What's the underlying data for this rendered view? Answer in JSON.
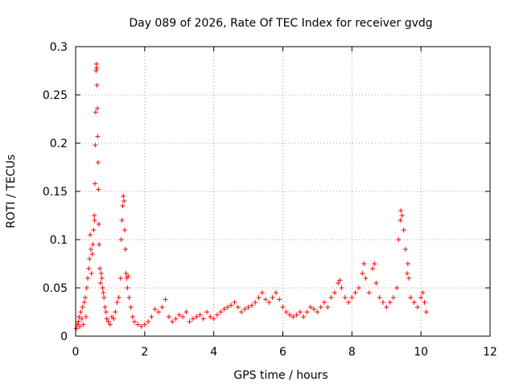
{
  "chart_data": {
    "type": "scatter",
    "title": "Day 089 of 2026, Rate Of TEC Index for receiver gvdg",
    "xlabel": "GPS time / hours",
    "ylabel": "ROTI / TECUs",
    "xlim": [
      0,
      12
    ],
    "ylim": [
      0,
      0.3
    ],
    "x_ticks": [
      0,
      2,
      4,
      6,
      8,
      10,
      12
    ],
    "x_tick_labels": [
      "0",
      "2",
      "4",
      "6",
      "8",
      "10",
      "12"
    ],
    "y_ticks": [
      0,
      0.05,
      0.1,
      0.15,
      0.2,
      0.25,
      0.3
    ],
    "y_tick_labels": [
      "0",
      "0.05",
      "0.1",
      "0.15",
      "0.2",
      "0.25",
      "0.3"
    ],
    "grid": true,
    "marker": "+",
    "color": "#ff0000",
    "series": [
      {
        "name": "ROTI",
        "points": [
          [
            0.02,
            0.008
          ],
          [
            0.05,
            0.012
          ],
          [
            0.08,
            0.015
          ],
          [
            0.1,
            0.02
          ],
          [
            0.12,
            0.01
          ],
          [
            0.15,
            0.025
          ],
          [
            0.18,
            0.018
          ],
          [
            0.2,
            0.03
          ],
          [
            0.22,
            0.012
          ],
          [
            0.25,
            0.035
          ],
          [
            0.28,
            0.04
          ],
          [
            0.3,
            0.02
          ],
          [
            0.32,
            0.05
          ],
          [
            0.35,
            0.06
          ],
          [
            0.38,
            0.07
          ],
          [
            0.4,
            0.08
          ],
          [
            0.42,
            0.105
          ],
          [
            0.44,
            0.09
          ],
          [
            0.46,
            0.065
          ],
          [
            0.48,
            0.085
          ],
          [
            0.5,
            0.095
          ],
          [
            0.52,
            0.11
          ],
          [
            0.54,
            0.125
          ],
          [
            0.55,
            0.12
          ],
          [
            0.56,
            0.158
          ],
          [
            0.57,
            0.198
          ],
          [
            0.58,
            0.232
          ],
          [
            0.59,
            0.275
          ],
          [
            0.6,
            0.282
          ],
          [
            0.61,
            0.278
          ],
          [
            0.62,
            0.26
          ],
          [
            0.63,
            0.236
          ],
          [
            0.64,
            0.207
          ],
          [
            0.65,
            0.18
          ],
          [
            0.66,
            0.152
          ],
          [
            0.67,
            0.116
          ],
          [
            0.68,
            0.095
          ],
          [
            0.7,
            0.07
          ],
          [
            0.72,
            0.055
          ],
          [
            0.74,
            0.065
          ],
          [
            0.76,
            0.06
          ],
          [
            0.78,
            0.05
          ],
          [
            0.8,
            0.045
          ],
          [
            0.82,
            0.04
          ],
          [
            0.85,
            0.03
          ],
          [
            0.88,
            0.025
          ],
          [
            0.9,
            0.018
          ],
          [
            0.95,
            0.015
          ],
          [
            1.0,
            0.012
          ],
          [
            1.05,
            0.02
          ],
          [
            1.1,
            0.018
          ],
          [
            1.15,
            0.025
          ],
          [
            1.2,
            0.035
          ],
          [
            1.25,
            0.04
          ],
          [
            1.3,
            0.06
          ],
          [
            1.32,
            0.1
          ],
          [
            1.34,
            0.12
          ],
          [
            1.36,
            0.135
          ],
          [
            1.38,
            0.145
          ],
          [
            1.4,
            0.14
          ],
          [
            1.42,
            0.11
          ],
          [
            1.44,
            0.09
          ],
          [
            1.46,
            0.065
          ],
          [
            1.48,
            0.06
          ],
          [
            1.5,
            0.05
          ],
          [
            1.52,
            0.062
          ],
          [
            1.55,
            0.04
          ],
          [
            1.6,
            0.03
          ],
          [
            1.65,
            0.02
          ],
          [
            1.7,
            0.015
          ],
          [
            1.8,
            0.012
          ],
          [
            1.9,
            0.01
          ],
          [
            2.0,
            0.012
          ],
          [
            2.1,
            0.015
          ],
          [
            2.2,
            0.02
          ],
          [
            2.3,
            0.028
          ],
          [
            2.4,
            0.025
          ],
          [
            2.5,
            0.03
          ],
          [
            2.6,
            0.038
          ],
          [
            2.7,
            0.02
          ],
          [
            2.8,
            0.015
          ],
          [
            2.9,
            0.018
          ],
          [
            3.0,
            0.022
          ],
          [
            3.1,
            0.02
          ],
          [
            3.2,
            0.025
          ],
          [
            3.3,
            0.015
          ],
          [
            3.4,
            0.018
          ],
          [
            3.5,
            0.02
          ],
          [
            3.6,
            0.022
          ],
          [
            3.7,
            0.018
          ],
          [
            3.8,
            0.025
          ],
          [
            3.9,
            0.02
          ],
          [
            4.0,
            0.018
          ],
          [
            4.1,
            0.022
          ],
          [
            4.2,
            0.025
          ],
          [
            4.3,
            0.028
          ],
          [
            4.4,
            0.03
          ],
          [
            4.5,
            0.032
          ],
          [
            4.6,
            0.035
          ],
          [
            4.7,
            0.03
          ],
          [
            4.8,
            0.025
          ],
          [
            4.9,
            0.028
          ],
          [
            5.0,
            0.03
          ],
          [
            5.1,
            0.032
          ],
          [
            5.2,
            0.035
          ],
          [
            5.3,
            0.04
          ],
          [
            5.4,
            0.045
          ],
          [
            5.5,
            0.038
          ],
          [
            5.6,
            0.035
          ],
          [
            5.7,
            0.04
          ],
          [
            5.8,
            0.045
          ],
          [
            5.9,
            0.038
          ],
          [
            6.0,
            0.03
          ],
          [
            6.1,
            0.025
          ],
          [
            6.2,
            0.022
          ],
          [
            6.3,
            0.02
          ],
          [
            6.4,
            0.022
          ],
          [
            6.5,
            0.025
          ],
          [
            6.6,
            0.02
          ],
          [
            6.7,
            0.025
          ],
          [
            6.8,
            0.03
          ],
          [
            6.9,
            0.028
          ],
          [
            7.0,
            0.025
          ],
          [
            7.1,
            0.03
          ],
          [
            7.2,
            0.035
          ],
          [
            7.3,
            0.03
          ],
          [
            7.4,
            0.04
          ],
          [
            7.5,
            0.045
          ],
          [
            7.6,
            0.055
          ],
          [
            7.65,
            0.058
          ],
          [
            7.7,
            0.05
          ],
          [
            7.8,
            0.04
          ],
          [
            7.9,
            0.035
          ],
          [
            8.0,
            0.04
          ],
          [
            8.1,
            0.045
          ],
          [
            8.2,
            0.05
          ],
          [
            8.3,
            0.065
          ],
          [
            8.35,
            0.075
          ],
          [
            8.4,
            0.06
          ],
          [
            8.5,
            0.045
          ],
          [
            8.6,
            0.07
          ],
          [
            8.65,
            0.075
          ],
          [
            8.7,
            0.055
          ],
          [
            8.8,
            0.04
          ],
          [
            8.9,
            0.035
          ],
          [
            9.0,
            0.03
          ],
          [
            9.1,
            0.035
          ],
          [
            9.2,
            0.04
          ],
          [
            9.3,
            0.05
          ],
          [
            9.35,
            0.1
          ],
          [
            9.4,
            0.12
          ],
          [
            9.42,
            0.13
          ],
          [
            9.45,
            0.125
          ],
          [
            9.5,
            0.11
          ],
          [
            9.55,
            0.09
          ],
          [
            9.6,
            0.065
          ],
          [
            9.62,
            0.075
          ],
          [
            9.65,
            0.06
          ],
          [
            9.7,
            0.04
          ],
          [
            9.8,
            0.035
          ],
          [
            9.9,
            0.03
          ],
          [
            10.0,
            0.04
          ],
          [
            10.05,
            0.045
          ],
          [
            10.1,
            0.035
          ],
          [
            10.15,
            0.025
          ]
        ]
      }
    ]
  }
}
